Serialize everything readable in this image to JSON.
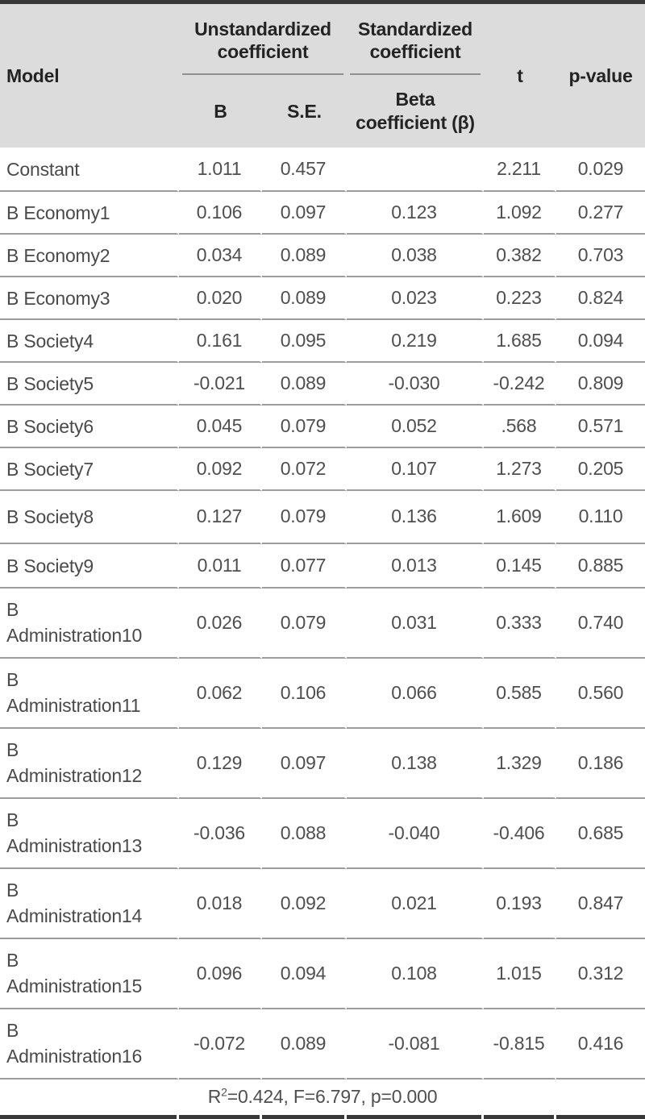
{
  "table": {
    "header": {
      "model_label": "Model",
      "group_unstandardized": "Unstandardized coefficient",
      "group_standardized": "Standardized coefficient",
      "sub_b": "B",
      "sub_se": "S.E.",
      "sub_beta": "Beta coefficient (β)",
      "t_label": "t",
      "p_label": "p-value"
    },
    "rows": [
      {
        "model": "Constant",
        "b": "1.011",
        "se": "0.457",
        "beta": "",
        "t": "2.211",
        "p": "0.029"
      },
      {
        "model": "B Economy1",
        "b": "0.106",
        "se": "0.097",
        "beta": "0.123",
        "t": "1.092",
        "p": "0.277"
      },
      {
        "model": "B Economy2",
        "b": "0.034",
        "se": "0.089",
        "beta": "0.038",
        "t": "0.382",
        "p": "0.703"
      },
      {
        "model": "B Economy3",
        "b": "0.020",
        "se": "0.089",
        "beta": "0.023",
        "t": "0.223",
        "p": "0.824"
      },
      {
        "model": "B Society4",
        "b": "0.161",
        "se": "0.095",
        "beta": "0.219",
        "t": "1.685",
        "p": "0.094"
      },
      {
        "model": "B Society5",
        "b": "-0.021",
        "se": "0.089",
        "beta": "-0.030",
        "t": "-0.242",
        "p": "0.809"
      },
      {
        "model": "B Society6",
        "b": "0.045",
        "se": "0.079",
        "beta": "0.052",
        "t": ".568",
        "p": "0.571"
      },
      {
        "model": "B Society7",
        "b": "0.092",
        "se": "0.072",
        "beta": "0.107",
        "t": "1.273",
        "p": "0.205"
      },
      {
        "model": "B Society8",
        "b": "0.127",
        "se": "0.079",
        "beta": "0.136",
        "t": "1.609",
        "p": "0.110"
      },
      {
        "model": "B Society9",
        "b": "0.011",
        "se": "0.077",
        "beta": "0.013",
        "t": "0.145",
        "p": "0.885"
      },
      {
        "model": "B Administration10",
        "b": "0.026",
        "se": "0.079",
        "beta": "0.031",
        "t": "0.333",
        "p": "0.740"
      },
      {
        "model": "B Administration11",
        "b": "0.062",
        "se": "0.106",
        "beta": "0.066",
        "t": "0.585",
        "p": "0.560"
      },
      {
        "model": "B Administration12",
        "b": "0.129",
        "se": "0.097",
        "beta": "0.138",
        "t": "1.329",
        "p": "0.186"
      },
      {
        "model": "B Administration13",
        "b": "-0.036",
        "se": "0.088",
        "beta": "-0.040",
        "t": "-0.406",
        "p": "0.685"
      },
      {
        "model": "B Administration14",
        "b": "0.018",
        "se": "0.092",
        "beta": "0.021",
        "t": "0.193",
        "p": "0.847"
      },
      {
        "model": "B Administration15",
        "b": "0.096",
        "se": "0.094",
        "beta": "0.108",
        "t": "1.015",
        "p": "0.312"
      },
      {
        "model": "B Administration16",
        "b": "-0.072",
        "se": "0.089",
        "beta": "-0.081",
        "t": "-0.815",
        "p": "0.416"
      }
    ],
    "footer": {
      "r_label": "R",
      "r_sup": "2",
      "rest": "=0.424, F=6.797, p=0.000"
    }
  }
}
